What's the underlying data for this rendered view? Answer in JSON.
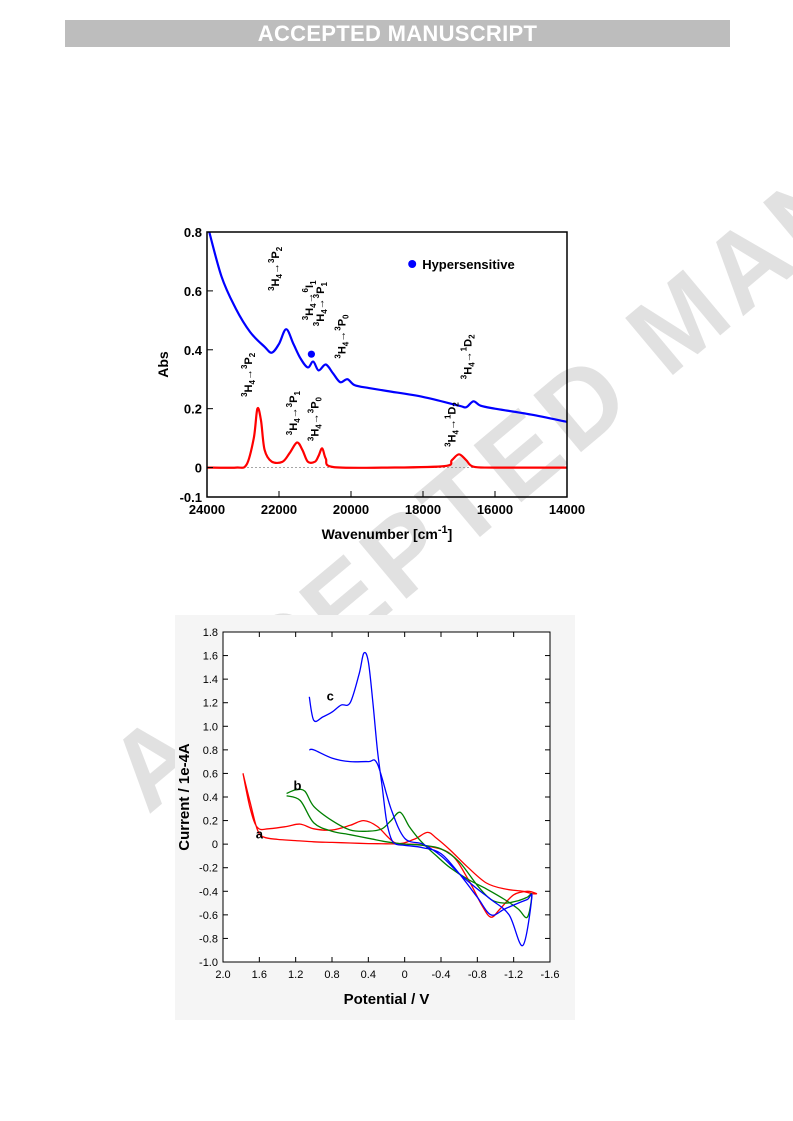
{
  "header": {
    "banner_text": "ACCEPTED MANUSCRIPT"
  },
  "watermark": {
    "text": "ACCEPTED MANUSCRIPT"
  },
  "colors": {
    "banner_bg": "#bdbdbd",
    "spectrum_top": "#0000ff",
    "spectrum_bottom": "#ff0000",
    "cv_a": "#ff0000",
    "cv_b": "#008000",
    "cv_c": "#0000ff"
  },
  "chart_data": [
    {
      "type": "line",
      "title": "",
      "xlabel": "Wavenumber [cm",
      "xlabel_sup": "-1",
      "xlabel_end": "]",
      "ylabel": "Abs",
      "xlim": [
        24000,
        14000
      ],
      "ylim": [
        -0.1,
        0.8
      ],
      "x_ticks": [
        24000,
        22000,
        20000,
        18000,
        16000,
        14000
      ],
      "x_tick_labels": [
        "24000",
        "22000",
        "20000",
        "18000",
        "16000",
        "14000"
      ],
      "y_ticks": [
        -0.1,
        0,
        0.2,
        0.4,
        0.6,
        0.8
      ],
      "y_tick_labels": [
        "-0.1",
        "0",
        "0.2",
        "0.4",
        "0.6",
        "0.8"
      ],
      "legend": {
        "label": "Hypersensitive",
        "marker_color": "#0000ff",
        "position": "top-right"
      },
      "hypersensitive_marker": {
        "x": 21100,
        "y": 0.385
      },
      "series": [
        {
          "color": "#0000ff",
          "x": [
            24000,
            23600,
            23200,
            22800,
            22400,
            22200,
            22000,
            21800,
            21600,
            21400,
            21200,
            21050,
            20900,
            20700,
            20500,
            20300,
            20100,
            19900,
            19500,
            19000,
            18000,
            17000,
            16800,
            16600,
            16400,
            16000,
            15000,
            14000
          ],
          "y": [
            0.83,
            0.65,
            0.54,
            0.46,
            0.41,
            0.39,
            0.42,
            0.47,
            0.42,
            0.37,
            0.34,
            0.36,
            0.33,
            0.35,
            0.32,
            0.29,
            0.3,
            0.28,
            0.27,
            0.26,
            0.24,
            0.21,
            0.205,
            0.225,
            0.21,
            0.2,
            0.18,
            0.155
          ]
        },
        {
          "color": "#ff0000",
          "x": [
            24000,
            23200,
            22900,
            22700,
            22600,
            22500,
            22400,
            22200,
            21900,
            21700,
            21500,
            21350,
            21200,
            21000,
            20900,
            20800,
            20700,
            20500,
            19000,
            17400,
            17200,
            17000,
            16800,
            16600,
            16000,
            14000
          ],
          "y": [
            0.0,
            0.0,
            0.01,
            0.1,
            0.2,
            0.16,
            0.06,
            0.02,
            0.02,
            0.05,
            0.085,
            0.06,
            0.02,
            0.02,
            0.04,
            0.065,
            0.03,
            0.002,
            0.0,
            0.005,
            0.025,
            0.045,
            0.025,
            0.003,
            0.0,
            0.0
          ]
        }
      ],
      "annotations": [
        {
          "from_sub": "4",
          "to": "P",
          "to_sub": "2",
          "to_sup": "3",
          "x": 22000,
          "y": 0.6
        },
        {
          "from_sub": "4",
          "to": "I",
          "to_sub": "1",
          "to_sup": "6",
          "x": 21050,
          "y": 0.5
        },
        {
          "from_sub": "4",
          "to": "P",
          "to_sub": "1",
          "to_sup": "3",
          "x": 20750,
          "y": 0.48
        },
        {
          "from_sub": "4",
          "to": "P",
          "to_sub": "0",
          "to_sup": "3",
          "x": 20150,
          "y": 0.37
        },
        {
          "from_sub": "4",
          "to": "D",
          "to_sub": "2",
          "to_sup": "1",
          "x": 16650,
          "y": 0.3
        },
        {
          "from_sub": "4",
          "to": "P",
          "to_sub": "2",
          "to_sup": "3",
          "x": 22750,
          "y": 0.24
        },
        {
          "from_sub": "4",
          "to": "P",
          "to_sub": "1",
          "to_sup": "3",
          "x": 21500,
          "y": 0.11
        },
        {
          "from_sub": "4",
          "to": "P",
          "to_sub": "0",
          "to_sup": "3",
          "x": 20900,
          "y": 0.09
        },
        {
          "from_sub": "4",
          "to": "D",
          "to_sub": "2",
          "to_sup": "1",
          "x": 17100,
          "y": 0.07
        }
      ]
    },
    {
      "type": "line",
      "title": "",
      "xlabel": "Potential / V",
      "ylabel": "Current / 1e-4A",
      "xlim": [
        2.0,
        -1.6
      ],
      "ylim": [
        -1.0,
        1.8
      ],
      "x_ticks": [
        2.0,
        1.6,
        1.2,
        0.8,
        0.4,
        0,
        -0.4,
        -0.8,
        -1.2,
        -1.6
      ],
      "x_tick_labels": [
        "2.0",
        "1.6",
        "1.2",
        "0.8",
        "0.4",
        "0",
        "-0.4",
        "-0.8",
        "-1.2",
        "-1.6"
      ],
      "y_ticks": [
        -1.0,
        -0.8,
        -0.6,
        -0.4,
        -0.2,
        0,
        0.2,
        0.4,
        0.6,
        0.8,
        1.0,
        1.2,
        1.4,
        1.6,
        1.8
      ],
      "y_tick_labels": [
        "-1.0",
        "-0.8",
        "-0.6",
        "-0.4",
        "-0.2",
        "0",
        "0.2",
        "0.4",
        "0.6",
        "0.8",
        "1.0",
        "1.2",
        "1.4",
        "1.6",
        "1.8"
      ],
      "grid": false,
      "series": [
        {
          "name": "a",
          "color": "#ff0000",
          "label_at": [
            1.6,
            0.05
          ],
          "x": [
            1.78,
            1.7,
            1.62,
            1.55,
            1.4,
            1.2,
            1.0,
            0.8,
            0.6,
            0.4,
            0.2,
            0.0,
            -0.2,
            -0.5,
            -0.7,
            -0.85,
            -0.95,
            -1.05,
            -1.2,
            -1.35,
            -1.45,
            -1.4,
            -1.3,
            -1.1,
            -0.9,
            -0.7,
            -0.5,
            -0.35,
            -0.25,
            -0.1,
            0.1,
            0.3,
            0.45,
            0.6,
            0.8,
            1.0,
            1.15,
            1.3,
            1.5,
            1.62,
            1.7,
            1.78
          ],
          "y": [
            0.6,
            0.35,
            0.12,
            0.06,
            0.04,
            0.03,
            0.02,
            0.015,
            0.01,
            0.005,
            0.003,
            0.0,
            -0.01,
            -0.08,
            -0.3,
            -0.52,
            -0.62,
            -0.55,
            -0.43,
            -0.4,
            -0.42,
            -0.42,
            -0.4,
            -0.38,
            -0.33,
            -0.2,
            -0.05,
            0.05,
            0.1,
            0.04,
            0.01,
            0.15,
            0.2,
            0.16,
            0.12,
            0.13,
            0.17,
            0.15,
            0.13,
            0.14,
            0.3,
            0.6
          ]
        },
        {
          "name": "b",
          "color": "#008000",
          "label_at": [
            1.18,
            0.46
          ],
          "x": [
            1.3,
            1.15,
            1.0,
            0.8,
            0.6,
            0.4,
            0.2,
            0.0,
            -0.2,
            -0.4,
            -0.6,
            -0.8,
            -0.95,
            -1.1,
            -1.25,
            -1.35,
            -1.4,
            -1.35,
            -1.25,
            -1.1,
            -0.9,
            -0.7,
            -0.5,
            -0.35,
            -0.25,
            -0.15,
            -0.05,
            0.05,
            0.15,
            0.25,
            0.4,
            0.6,
            0.8,
            1.0,
            1.1,
            1.2,
            1.3
          ],
          "y": [
            0.41,
            0.37,
            0.18,
            0.11,
            0.08,
            0.05,
            0.02,
            0.0,
            -0.01,
            -0.04,
            -0.15,
            -0.35,
            -0.47,
            -0.5,
            -0.48,
            -0.45,
            -0.43,
            -0.62,
            -0.55,
            -0.47,
            -0.38,
            -0.3,
            -0.2,
            -0.1,
            -0.03,
            0.05,
            0.15,
            0.27,
            0.2,
            0.13,
            0.11,
            0.12,
            0.2,
            0.32,
            0.45,
            0.46,
            0.43
          ]
        },
        {
          "name": "c",
          "color": "#0000ff",
          "label_at": [
            0.82,
            1.22
          ],
          "x": [
            1.05,
            1.0,
            0.9,
            0.8,
            0.7,
            0.6,
            0.5,
            0.45,
            0.4,
            0.35,
            0.3,
            0.25,
            0.2,
            0.15,
            0.1,
            0.0,
            -0.2,
            -0.4,
            -0.6,
            -0.8,
            -0.95,
            -1.1,
            -1.25,
            -1.35,
            -1.4,
            -1.3,
            -1.15,
            -0.95,
            -0.8,
            -0.6,
            -0.4,
            -0.2,
            0.0,
            0.15,
            0.3,
            0.4,
            0.6,
            0.8,
            1.0,
            1.05
          ],
          "y": [
            1.25,
            1.05,
            1.08,
            1.12,
            1.18,
            1.2,
            1.45,
            1.62,
            1.55,
            1.2,
            0.8,
            0.5,
            0.2,
            0.05,
            0.0,
            -0.01,
            -0.03,
            -0.08,
            -0.25,
            -0.45,
            -0.6,
            -0.55,
            -0.5,
            -0.47,
            -0.45,
            -0.86,
            -0.6,
            -0.47,
            -0.38,
            -0.25,
            -0.1,
            0.0,
            0.05,
            0.3,
            0.68,
            0.7,
            0.7,
            0.73,
            0.8,
            0.8
          ]
        }
      ]
    }
  ]
}
